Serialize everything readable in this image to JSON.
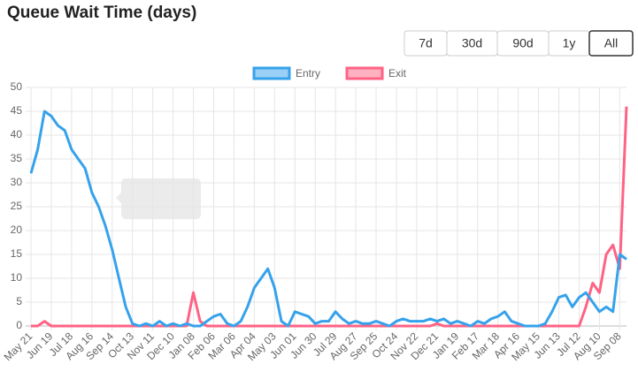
{
  "chart_data": {
    "type": "line",
    "title": "Queue Wait Time (days)",
    "categories": [
      "May 21",
      null,
      null,
      "Jun 19",
      null,
      null,
      "Jul 18",
      null,
      null,
      "Aug 16",
      null,
      null,
      "Sep 14",
      null,
      null,
      "Oct 13",
      null,
      null,
      "Nov 11",
      null,
      null,
      "Dec 10",
      null,
      null,
      "Jan 08",
      null,
      null,
      "Feb 06",
      null,
      null,
      "Mar 06",
      null,
      null,
      "Apr 04",
      null,
      null,
      "May 03",
      null,
      null,
      "Jun 01",
      null,
      null,
      "Jun 30",
      null,
      null,
      "Jul 29",
      null,
      null,
      "Aug 27",
      null,
      null,
      "Sep 25",
      null,
      null,
      "Oct 24",
      null,
      null,
      "Nov 22",
      null,
      null,
      "Dec 21",
      null,
      null,
      "Jan 19",
      null,
      null,
      "Feb 17",
      null,
      null,
      "Mar 18",
      null,
      null,
      "Apr 16",
      null,
      null,
      "May 15",
      null,
      null,
      "Jun 13",
      null,
      null,
      "Jul 12",
      null,
      null,
      "Aug 10",
      null,
      null,
      "Sep 08",
      null
    ],
    "series": [
      {
        "name": "Entry",
        "color": "#36a2eb",
        "fill": "#9ad0f5",
        "values": [
          32,
          37,
          45,
          44,
          42,
          41,
          37,
          35,
          33,
          28,
          25,
          21,
          16,
          10,
          4,
          0.5,
          0,
          0.5,
          0,
          1,
          0,
          0.5,
          0,
          0.5,
          0,
          0,
          1,
          2,
          2.5,
          0.5,
          0,
          1,
          4,
          8,
          10,
          12,
          8,
          1,
          0,
          3,
          2.5,
          2,
          0.5,
          1,
          1,
          3,
          1.5,
          0.5,
          1,
          0.5,
          0.5,
          1,
          0.5,
          0,
          1,
          1.5,
          1,
          1,
          1,
          1.5,
          1,
          1.5,
          0.5,
          1,
          0.5,
          0,
          1,
          0.5,
          1.5,
          2,
          3,
          1,
          0.5,
          0,
          0,
          0,
          0.5,
          3,
          6,
          6.5,
          4,
          6,
          7,
          5,
          3,
          4,
          3,
          15,
          14
        ]
      },
      {
        "name": "Exit",
        "color": "#ff6384",
        "fill": "#ffb1c1",
        "values": [
          0,
          0,
          1,
          0,
          0,
          0,
          0,
          0,
          0,
          0,
          0,
          0,
          0,
          0,
          0,
          0,
          0,
          0,
          0,
          0,
          0,
          0,
          0,
          0,
          7,
          1,
          0,
          0,
          0,
          0,
          0,
          0,
          0,
          0,
          0,
          0,
          0,
          0,
          0,
          0,
          0,
          0,
          0,
          0,
          0,
          0,
          0,
          0,
          0,
          0,
          0,
          0,
          0,
          0,
          0,
          0,
          0,
          0,
          0,
          0,
          0.5,
          0,
          0,
          0,
          0,
          0,
          0,
          0,
          0,
          0,
          0,
          0,
          0,
          0,
          0,
          0,
          0,
          0,
          0,
          0,
          0,
          0,
          4,
          9,
          7,
          15,
          17,
          12,
          46
        ]
      }
    ],
    "ylim": [
      0,
      50
    ],
    "yticks": [
      0,
      5,
      10,
      15,
      20,
      25,
      30,
      35,
      40,
      45,
      50
    ],
    "grid": true,
    "legend": "top"
  },
  "buttons": [
    "7d",
    "30d",
    "90d",
    "1y",
    "All"
  ],
  "active_button": 4
}
